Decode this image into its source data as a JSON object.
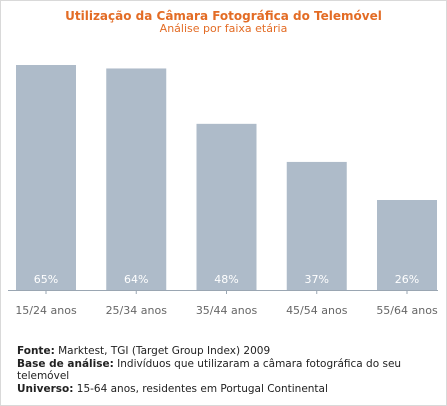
{
  "chart_data": {
    "type": "bar",
    "title": "Utilização da Câmara Fotográfica do Telemóvel",
    "subtitle": "Análise por faixa etária",
    "categories": [
      "15/24 anos",
      "25/34 anos",
      "35/44 anos",
      "45/54 anos",
      "55/64 anos"
    ],
    "values": [
      65,
      64,
      48,
      37,
      26
    ],
    "data_labels": [
      "65%",
      "64%",
      "48%",
      "37%",
      "26%"
    ],
    "ylim": [
      0,
      65
    ],
    "grid": false,
    "bar_color": "#aebbc9"
  },
  "footer": {
    "fonte_label": "Fonte:",
    "fonte_text": " Marktest, TGI (Target Group Index) 2009",
    "base_label": "Base de análise:",
    "base_text": " Indivíduos que utilizaram a câmara fotográfica do seu telemóvel",
    "universo_label": "Universo:",
    "universo_text": " 15-64 anos, residentes em Portugal Continental"
  },
  "colors": {
    "title": "#e36c25",
    "bar": "#aebbc9",
    "axis": "#9aa6b2",
    "tick_label": "#666666",
    "data_label": "#ffffff"
  }
}
